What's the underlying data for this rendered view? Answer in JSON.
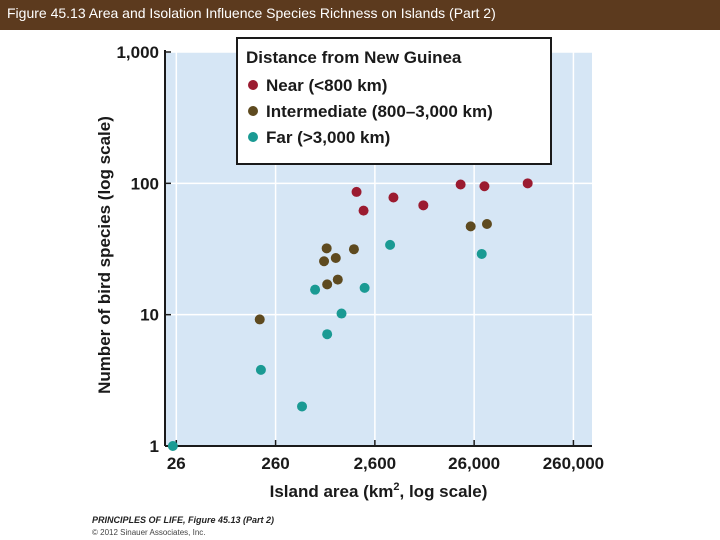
{
  "header": {
    "title": "Figure 45.13  Area and Isolation Influence Species Richness on Islands (Part 2)"
  },
  "chart_data": {
    "type": "scatter",
    "xlabel": "Island area (km², log scale)",
    "xlabel_main": "Island area (km",
    "xlabel_sup": "2",
    "xlabel_tail": ", log scale)",
    "ylabel": "Number of bird species (log scale)",
    "x_scale": "log",
    "y_scale": "log",
    "xlim": [
      20,
      400000
    ],
    "ylim": [
      1,
      1000
    ],
    "x_ticks": [
      26,
      260,
      2600,
      26000,
      260000
    ],
    "x_tick_labels": [
      "26",
      "260",
      "2,600",
      "26,000",
      "260,000"
    ],
    "y_ticks": [
      1,
      10,
      100,
      1000
    ],
    "y_tick_labels": [
      "1",
      "10",
      "100",
      "1,000"
    ],
    "grid": true,
    "legend_title": "Distance from New Guinea",
    "legend_position": "top-right",
    "series": [
      {
        "name": "Near (<800 km)",
        "color": "#9b1b30",
        "points": [
          [
            1700,
            86
          ],
          [
            2000,
            62
          ],
          [
            4000,
            78
          ],
          [
            8000,
            68
          ],
          [
            19000,
            98
          ],
          [
            33000,
            95
          ],
          [
            90000,
            100
          ]
        ]
      },
      {
        "name": "Intermediate (800–3,000 km)",
        "color": "#5e4a1f",
        "points": [
          [
            180,
            9.2
          ],
          [
            800,
            25.5
          ],
          [
            850,
            32
          ],
          [
            860,
            17
          ],
          [
            1050,
            27
          ],
          [
            1100,
            18.5
          ],
          [
            1600,
            31.5
          ],
          [
            24000,
            47
          ],
          [
            35000,
            49
          ]
        ]
      },
      {
        "name": "Far (>3,000 km)",
        "color": "#1a9a93",
        "points": [
          [
            24,
            1
          ],
          [
            185,
            3.8
          ],
          [
            480,
            2
          ],
          [
            650,
            15.5
          ],
          [
            860,
            7.1
          ],
          [
            1200,
            10.2
          ],
          [
            2050,
            16
          ],
          [
            3700,
            34
          ],
          [
            31000,
            29
          ]
        ]
      }
    ]
  },
  "credits": {
    "line1": "PRINCIPLES OF LIFE, Figure 45.13 (Part 2)",
    "line2": "© 2012 Sinauer Associates, Inc."
  }
}
